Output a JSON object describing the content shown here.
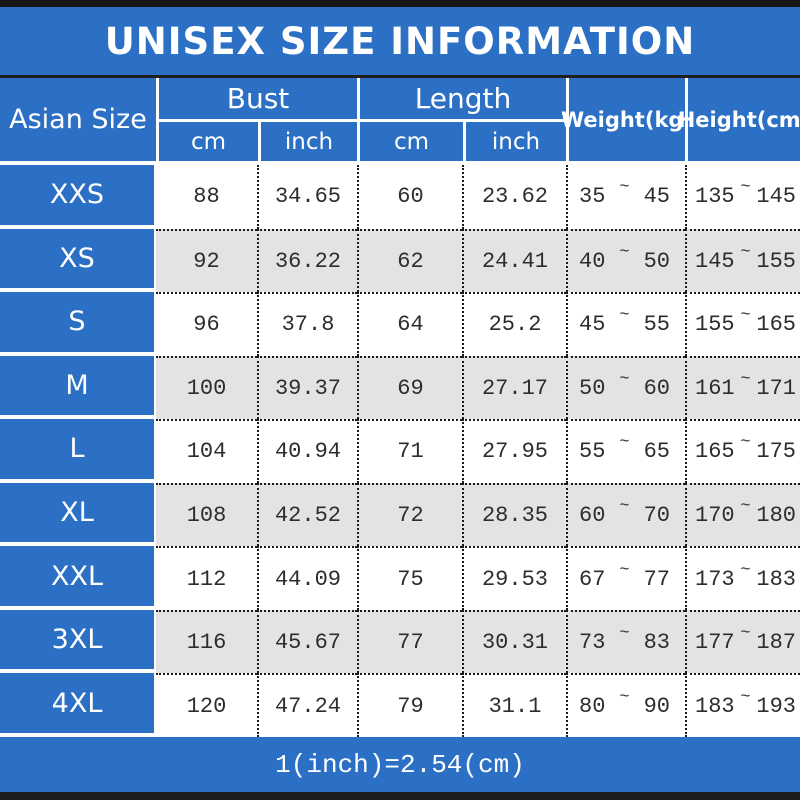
{
  "title": "UNISEX SIZE INFORMATION",
  "footer_note": "1(inch)=2.54(cm)",
  "tilde": "~",
  "colors": {
    "accent_blue": "#2b70c4",
    "stripe_gray": "#e3e3e5",
    "border_black": "#1a1a1a",
    "text_white": "#ffffff",
    "text_dark": "#2d2d2d"
  },
  "header": {
    "size_col": "Asian Size",
    "bust": "Bust",
    "length": "Length",
    "cm": "cm",
    "inch": "inch",
    "weight": "Weight(kg)",
    "height": "Height(cm)"
  },
  "rows": [
    {
      "size": "XXS",
      "bust_cm": "88",
      "bust_in": "34.65",
      "length_cm": "60",
      "length_in": "23.62",
      "weight_min": "35",
      "weight_max": "45",
      "height_min": "135",
      "height_max": "145"
    },
    {
      "size": "XS",
      "bust_cm": "92",
      "bust_in": "36.22",
      "length_cm": "62",
      "length_in": "24.41",
      "weight_min": "40",
      "weight_max": "50",
      "height_min": "145",
      "height_max": "155"
    },
    {
      "size": "S",
      "bust_cm": "96",
      "bust_in": "37.8",
      "length_cm": "64",
      "length_in": "25.2",
      "weight_min": "45",
      "weight_max": "55",
      "height_min": "155",
      "height_max": "165"
    },
    {
      "size": "M",
      "bust_cm": "100",
      "bust_in": "39.37",
      "length_cm": "69",
      "length_in": "27.17",
      "weight_min": "50",
      "weight_max": "60",
      "height_min": "161",
      "height_max": "171"
    },
    {
      "size": "L",
      "bust_cm": "104",
      "bust_in": "40.94",
      "length_cm": "71",
      "length_in": "27.95",
      "weight_min": "55",
      "weight_max": "65",
      "height_min": "165",
      "height_max": "175"
    },
    {
      "size": "XL",
      "bust_cm": "108",
      "bust_in": "42.52",
      "length_cm": "72",
      "length_in": "28.35",
      "weight_min": "60",
      "weight_max": "70",
      "height_min": "170",
      "height_max": "180"
    },
    {
      "size": "XXL",
      "bust_cm": "112",
      "bust_in": "44.09",
      "length_cm": "75",
      "length_in": "29.53",
      "weight_min": "67",
      "weight_max": "77",
      "height_min": "173",
      "height_max": "183"
    },
    {
      "size": "3XL",
      "bust_cm": "116",
      "bust_in": "45.67",
      "length_cm": "77",
      "length_in": "30.31",
      "weight_min": "73",
      "weight_max": "83",
      "height_min": "177",
      "height_max": "187"
    },
    {
      "size": "4XL",
      "bust_cm": "120",
      "bust_in": "47.24",
      "length_cm": "79",
      "length_in": "31.1",
      "weight_min": "80",
      "weight_max": "90",
      "height_min": "183",
      "height_max": "193"
    }
  ],
  "chart_data": {
    "type": "table",
    "title": "UNISEX SIZE INFORMATION",
    "columns": [
      "Asian Size",
      "Bust cm",
      "Bust inch",
      "Length cm",
      "Length inch",
      "Weight(kg)",
      "Height(cm)"
    ],
    "rows": [
      [
        "XXS",
        88,
        34.65,
        60,
        23.62,
        "35~45",
        "135~145"
      ],
      [
        "XS",
        92,
        36.22,
        62,
        24.41,
        "40~50",
        "145~155"
      ],
      [
        "S",
        96,
        37.8,
        64,
        25.2,
        "45~55",
        "155~165"
      ],
      [
        "M",
        100,
        39.37,
        69,
        27.17,
        "50~60",
        "161~171"
      ],
      [
        "L",
        104,
        40.94,
        71,
        27.95,
        "55~65",
        "165~175"
      ],
      [
        "XL",
        108,
        42.52,
        72,
        28.35,
        "60~70",
        "170~180"
      ],
      [
        "XXL",
        112,
        44.09,
        75,
        29.53,
        "67~77",
        "173~183"
      ],
      [
        "3XL",
        116,
        45.67,
        77,
        30.31,
        "73~83",
        "177~187"
      ],
      [
        "4XL",
        120,
        47.24,
        79,
        31.1,
        "80~90",
        "183~193"
      ]
    ],
    "note": "1(inch)=2.54(cm)"
  }
}
